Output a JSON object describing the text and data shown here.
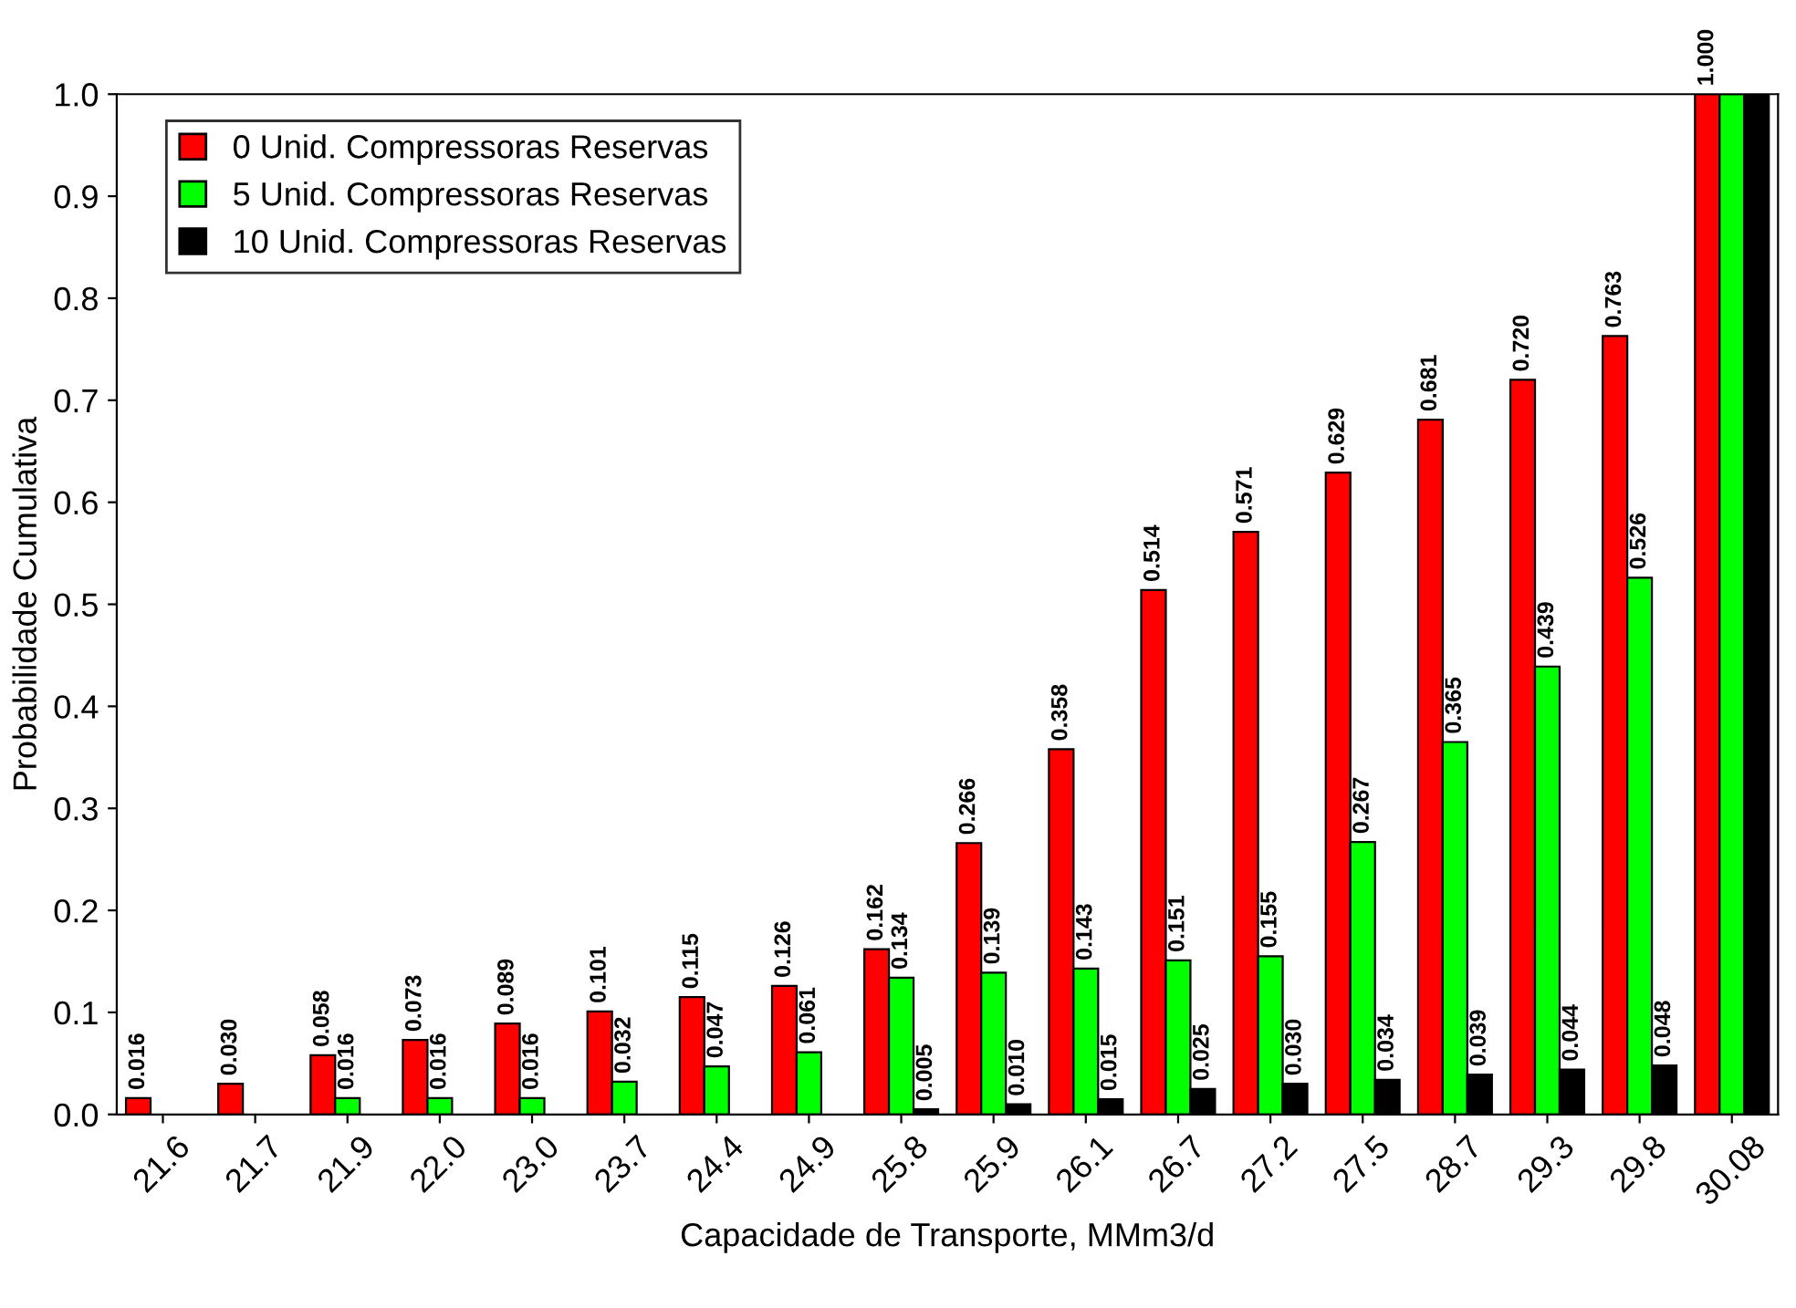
{
  "chart_data": {
    "type": "bar",
    "xlabel": "Capacidade de Transporte, MMm3/d",
    "ylabel": "Probabilidade Cumulativa",
    "categories": [
      "21.6",
      "21.7",
      "21.9",
      "22.0",
      "23.0",
      "23.7",
      "24.4",
      "24.9",
      "25.8",
      "25.9",
      "26.1",
      "26.7",
      "27.2",
      "27.5",
      "28.7",
      "29.3",
      "29.8",
      "30.08"
    ],
    "series": [
      {
        "name": "0 Unid. Compressoras Reservas",
        "color": "#ff0000",
        "values": [
          0.016,
          0.03,
          0.058,
          0.073,
          0.089,
          0.101,
          0.115,
          0.126,
          0.162,
          0.266,
          0.358,
          0.514,
          0.571,
          0.629,
          0.681,
          0.72,
          0.763,
          1.0
        ],
        "value_labels": [
          "0.016",
          "0.030",
          "0.058",
          "0.073",
          "0.089",
          "0.101",
          "0.115",
          "0.126",
          "0.162",
          "0.266",
          "0.358",
          "0.514",
          "0.571",
          "0.629",
          "0.681",
          "0.720",
          "0.763",
          "1.000"
        ]
      },
      {
        "name": "5 Unid. Compressoras Reservas",
        "color": "#00ff00",
        "values": [
          null,
          null,
          0.016,
          0.016,
          0.016,
          0.032,
          0.047,
          0.061,
          0.134,
          0.139,
          0.143,
          0.151,
          0.155,
          0.267,
          0.365,
          0.439,
          0.526,
          1.0
        ],
        "value_labels": [
          null,
          null,
          "0.016",
          "0.016",
          "0.016",
          "0.032",
          "0.047",
          "0.061",
          "0.134",
          "0.139",
          "0.143",
          "0.151",
          "0.155",
          "0.267",
          "0.365",
          "0.439",
          "0.526",
          null
        ]
      },
      {
        "name": "10 Unid. Compressoras Reservas",
        "color": "#000000",
        "values": [
          null,
          null,
          null,
          null,
          null,
          null,
          null,
          null,
          0.005,
          0.01,
          0.015,
          0.025,
          0.03,
          0.034,
          0.039,
          0.044,
          0.048,
          1.0
        ],
        "value_labels": [
          null,
          null,
          null,
          null,
          null,
          null,
          null,
          null,
          "0.005",
          "0.010",
          "0.015",
          "0.025",
          "0.030",
          "0.034",
          "0.039",
          "0.044",
          "0.048",
          null
        ]
      }
    ],
    "ylim": [
      0,
      1
    ],
    "yticks": [
      {
        "value": 0,
        "label": "0.0"
      },
      {
        "value": 0.1,
        "label": "0.1"
      },
      {
        "value": 0.2,
        "label": "0.2"
      },
      {
        "value": 0.3,
        "label": "0.3"
      },
      {
        "value": 0.4,
        "label": "0.4"
      },
      {
        "value": 0.5,
        "label": "0.5"
      },
      {
        "value": 0.6,
        "label": "0.6"
      },
      {
        "value": 0.7,
        "label": "0.7"
      },
      {
        "value": 0.8,
        "label": "0.8"
      },
      {
        "value": 0.9,
        "label": "0.9"
      },
      {
        "value": 1,
        "label": "1.0"
      }
    ],
    "grid": false,
    "legend": "top left"
  }
}
